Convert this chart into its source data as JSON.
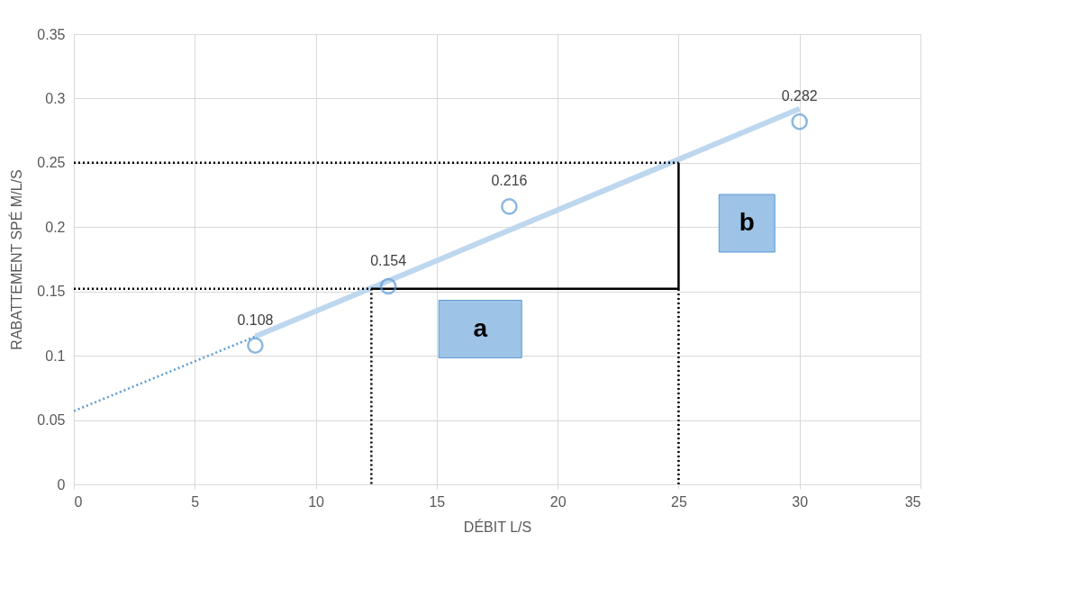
{
  "chart_data": {
    "type": "scatter",
    "xlabel": "DÉBIT   L/S",
    "ylabel": "RABATTEMENT SPÉ   M/L/S",
    "xlim": [
      0,
      35
    ],
    "ylim": [
      0,
      0.35
    ],
    "xticks": [
      0,
      5,
      10,
      15,
      20,
      25,
      30,
      35
    ],
    "yticks": [
      0,
      0.05,
      0.1,
      0.15,
      0.2,
      0.25,
      0.3,
      0.35
    ],
    "grid": true,
    "series": [
      {
        "type": "line",
        "x": [
          7.5,
          30
        ],
        "values": [
          0.115,
          0.292
        ],
        "color": "#bdd7ee",
        "line_style": "solid"
      },
      {
        "type": "line",
        "x": [
          0,
          7.5
        ],
        "values": [
          0.057,
          0.115
        ],
        "color": "#5b9bd5",
        "line_style": "dotted"
      },
      {
        "type": "line",
        "x": [
          0,
          25
        ],
        "values": [
          0.25,
          0.25
        ],
        "color": "#000000",
        "line_style": "dotted"
      },
      {
        "type": "line",
        "x": [
          0,
          12.3,
          12.3
        ],
        "values": [
          0.152,
          0.152,
          0
        ],
        "color": "#000000",
        "line_style": "dotted"
      },
      {
        "type": "line",
        "x": [
          25,
          25
        ],
        "values": [
          0,
          0.152
        ],
        "color": "#000000",
        "line_style": "dotted"
      },
      {
        "type": "line",
        "x": [
          12.3,
          25,
          25
        ],
        "values": [
          0.152,
          0.152,
          0.25
        ],
        "color": "#000000",
        "line_style": "solid"
      },
      {
        "x": [
          7.5,
          13,
          18,
          30
        ],
        "values": [
          0.108,
          0.154,
          0.216,
          0.282
        ],
        "color": "#5b9bd5",
        "marker": "circle",
        "data_labels": true
      }
    ],
    "annotations": [
      "a",
      "b"
    ]
  }
}
